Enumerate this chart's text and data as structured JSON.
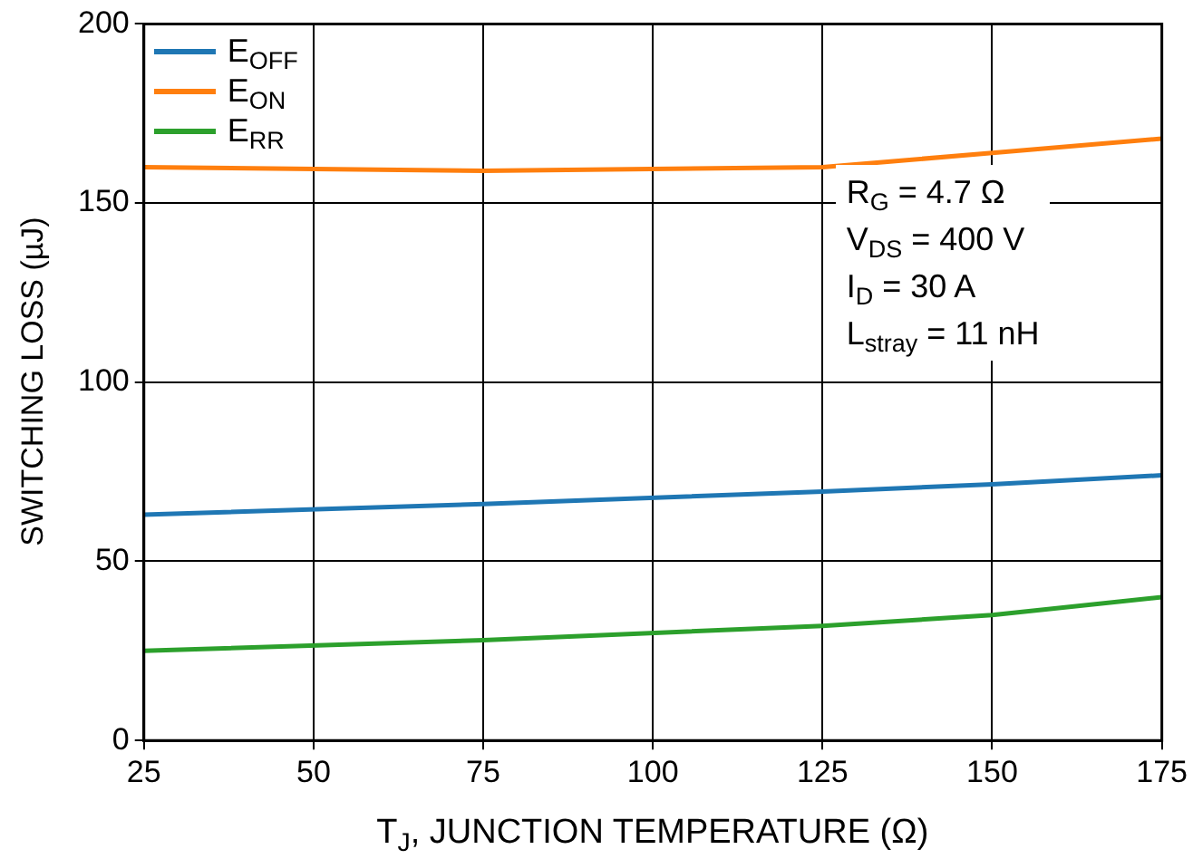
{
  "chart_data": {
    "type": "line",
    "xlabel": "T$_{J}$, JUNCTION TEMPERATURE (Ω)",
    "ylabel": "SWITCHING LOSS (µJ)",
    "x": [
      25,
      75,
      125,
      150,
      175
    ],
    "series": [
      {
        "name": "E$_{OFF}$",
        "color": "#1f77b4",
        "values": [
          63,
          66,
          69.5,
          71.5,
          74
        ]
      },
      {
        "name": "E$_{ON}$",
        "color": "#ff7f0e",
        "values": [
          160,
          159,
          160,
          164,
          168
        ]
      },
      {
        "name": "E$_{RR}$",
        "color": "#2ca02c",
        "values": [
          25,
          28,
          32,
          35,
          40
        ]
      }
    ],
    "xlim": [
      25,
      175
    ],
    "xticks": [
      25,
      50,
      75,
      100,
      125,
      150,
      175
    ],
    "ylim": [
      0,
      200
    ],
    "yticks": [
      0,
      50,
      100,
      150,
      200
    ],
    "grid": true,
    "legend": "top left",
    "marker": "none",
    "line_style": "solid",
    "annotations": [
      "R$_{G}$ = 4.7 Ω",
      "V$_{DS}$ = 400 V",
      "I$_{D}$ = 30 A",
      "L$_{stray}$ = 11 nH"
    ]
  }
}
